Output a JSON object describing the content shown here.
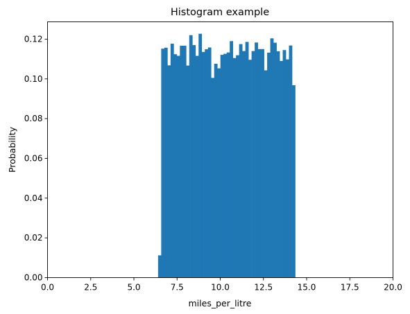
{
  "chart_data": {
    "type": "bar",
    "title": "Histogram example",
    "xlabel": "miles_per_litre",
    "ylabel": "Probability",
    "xlim": [
      0,
      20
    ],
    "ylim": [
      0,
      0.1287
    ],
    "xticks": [
      "0.0",
      "2.5",
      "5.0",
      "7.5",
      "10.0",
      "12.5",
      "15.0",
      "17.5",
      "20.0"
    ],
    "xtick_values": [
      0,
      2.5,
      5,
      7.5,
      10,
      12.5,
      15,
      17.5,
      20
    ],
    "yticks": [
      "0.00",
      "0.02",
      "0.04",
      "0.06",
      "0.08",
      "0.10",
      "0.12"
    ],
    "ytick_values": [
      0,
      0.02,
      0.04,
      0.06,
      0.08,
      0.1,
      0.12
    ],
    "grid": false,
    "bar_color": "#1f77b4",
    "bins": {
      "start": 6.4,
      "width": 0.1804,
      "values": [
        0.0112,
        0.1152,
        0.1157,
        0.1068,
        0.1177,
        0.1124,
        0.1116,
        0.1167,
        0.1167,
        0.1067,
        0.122,
        0.117,
        0.1116,
        0.1227,
        0.1135,
        0.1149,
        0.1158,
        0.1005,
        0.1076,
        0.1053,
        0.1121,
        0.1126,
        0.1133,
        0.119,
        0.1105,
        0.1119,
        0.1175,
        0.114,
        0.1186,
        0.1096,
        0.114,
        0.1183,
        0.115,
        0.115,
        0.1043,
        0.1132,
        0.1204,
        0.1182,
        0.1139,
        0.109,
        0.1145,
        0.1098,
        0.1168,
        0.0968
      ]
    }
  }
}
